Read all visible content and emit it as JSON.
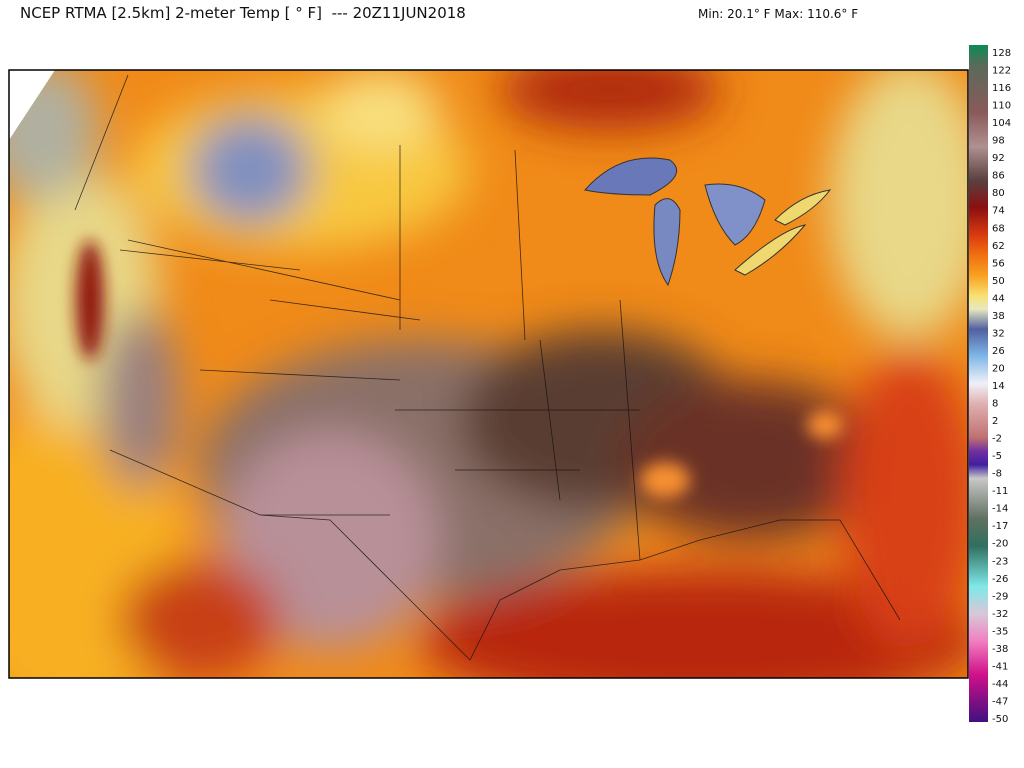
{
  "header": {
    "title": "NCEP RTMA [2.5km] 2-meter Temp [ ° F]  --- 20Z11JUN2018",
    "range_label": "Min: 20.1° F Max: 110.6° F"
  },
  "colorbar": {
    "ticks": [
      128,
      122,
      116,
      110,
      104,
      98,
      92,
      86,
      80,
      74,
      68,
      62,
      56,
      50,
      44,
      38,
      32,
      26,
      20,
      14,
      8,
      2,
      -2,
      -5,
      -8,
      -11,
      -14,
      -17,
      -20,
      -23,
      -26,
      -29,
      -32,
      -35,
      -38,
      -41,
      -44,
      -47,
      -50
    ]
  }
}
